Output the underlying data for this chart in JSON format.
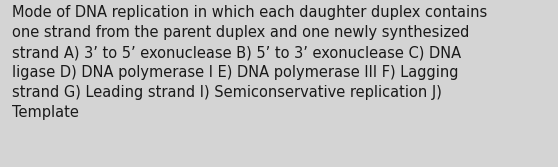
{
  "text_lines": [
    "Mode of DNA replication in which each daughter duplex contains",
    "one strand from the parent duplex and one newly synthesized",
    "strand A) 3’ to 5’ exonuclease B) 5’ to 3’ exonuclease C) DNA",
    "ligase D) DNA polymerase I E) DNA polymerase III F) Lagging",
    "strand G) Leading strand I) Semiconservative replication J)",
    "Template"
  ],
  "background_color": "#d4d4d4",
  "text_color": "#1a1a1a",
  "font_size": 10.5,
  "fig_width": 5.58,
  "fig_height": 1.67,
  "dpi": 100,
  "linespacing": 1.42
}
